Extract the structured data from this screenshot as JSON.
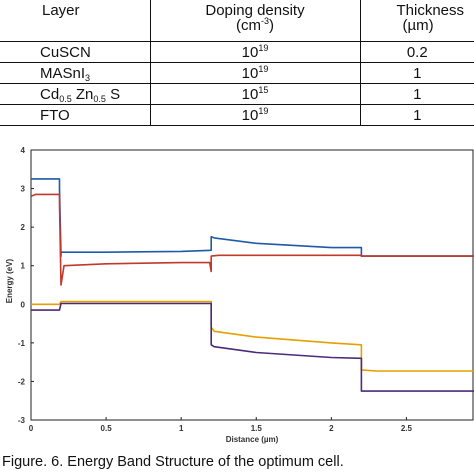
{
  "table": {
    "headers": {
      "layer": "Layer",
      "doping_line1": "Doping density",
      "doping_unit_base": "(cm",
      "doping_unit_exp": "-3",
      "doping_unit_close": ")",
      "thickness_line1": "Thickness",
      "thickness_unit": "(µm)"
    },
    "rows": [
      {
        "layer_main": "CuSCN",
        "doping_base": "10",
        "doping_exp": "19",
        "thickness": "0.2"
      },
      {
        "layer_main": "MASnI",
        "layer_sub": "3",
        "doping_base": "10",
        "doping_exp": "19",
        "thickness": "1"
      },
      {
        "layer_cd": "Cd",
        "layer_cd_sub": "0.5",
        "layer_zn": " Zn",
        "layer_zn_sub": "0.5",
        "layer_s": " S",
        "doping_base": "10",
        "doping_exp": "15",
        "thickness": "1"
      },
      {
        "layer_main": "FTO",
        "doping_base": "10",
        "doping_exp": "19",
        "thickness": "1"
      }
    ]
  },
  "chart_data": {
    "type": "line",
    "xlabel": "Distance (µm)",
    "ylabel": "Energy (eV)",
    "xlim": [
      0,
      2.95
    ],
    "ylim": [
      -3,
      4
    ],
    "xticks": [
      "0",
      "0.5",
      "1",
      "1.5",
      "2",
      "2.5"
    ],
    "xtick_values": [
      0,
      0.5,
      1,
      1.5,
      2,
      2.5
    ],
    "yticks": [
      "-3",
      "-2",
      "-1",
      "0",
      "1",
      "2",
      "3",
      "4"
    ],
    "ytick_values": [
      -3,
      -2,
      -1,
      0,
      1,
      2,
      3,
      4
    ],
    "grid": false,
    "series": [
      {
        "color": "#1f5aa6",
        "x": [
          0,
          0.19,
          0.19,
          0.2,
          0.2,
          0.5,
          1.0,
          1.2,
          1.2,
          1.22,
          1.5,
          2.0,
          2.2,
          2.2,
          2.95
        ],
        "y": [
          3.25,
          3.25,
          3.0,
          1.25,
          1.35,
          1.35,
          1.37,
          1.4,
          1.75,
          1.72,
          1.58,
          1.47,
          1.47,
          1.25,
          1.25
        ]
      },
      {
        "color": "#c0392b",
        "x": [
          0,
          0.03,
          0.19,
          0.19,
          0.2,
          0.22,
          0.5,
          1.0,
          1.19,
          1.2,
          1.2,
          1.25,
          2.2,
          2.2,
          2.95
        ],
        "y": [
          2.8,
          2.85,
          2.85,
          2.6,
          0.5,
          1.0,
          1.05,
          1.08,
          1.08,
          0.85,
          1.25,
          1.27,
          1.27,
          1.25,
          1.25
        ]
      },
      {
        "color": "#e69f00",
        "x": [
          0,
          0.19,
          0.2,
          1.2,
          1.2,
          1.22,
          1.5,
          2.0,
          2.2,
          2.2,
          2.3,
          2.95
        ],
        "y": [
          0.0,
          0.0,
          0.07,
          0.07,
          -0.6,
          -0.7,
          -0.85,
          -1.0,
          -1.05,
          -1.7,
          -1.73,
          -1.73
        ]
      },
      {
        "color": "#4b2a7a",
        "x": [
          0,
          0.19,
          0.2,
          1.2,
          1.2,
          1.22,
          1.5,
          2.0,
          2.2,
          2.2,
          2.3,
          2.95
        ],
        "y": [
          -0.15,
          -0.15,
          0.02,
          0.02,
          -1.05,
          -1.1,
          -1.25,
          -1.38,
          -1.4,
          -2.25,
          -2.25,
          -2.25
        ]
      }
    ]
  },
  "caption": "Figure. 6.  Energy Band Structure of the optimum cell."
}
